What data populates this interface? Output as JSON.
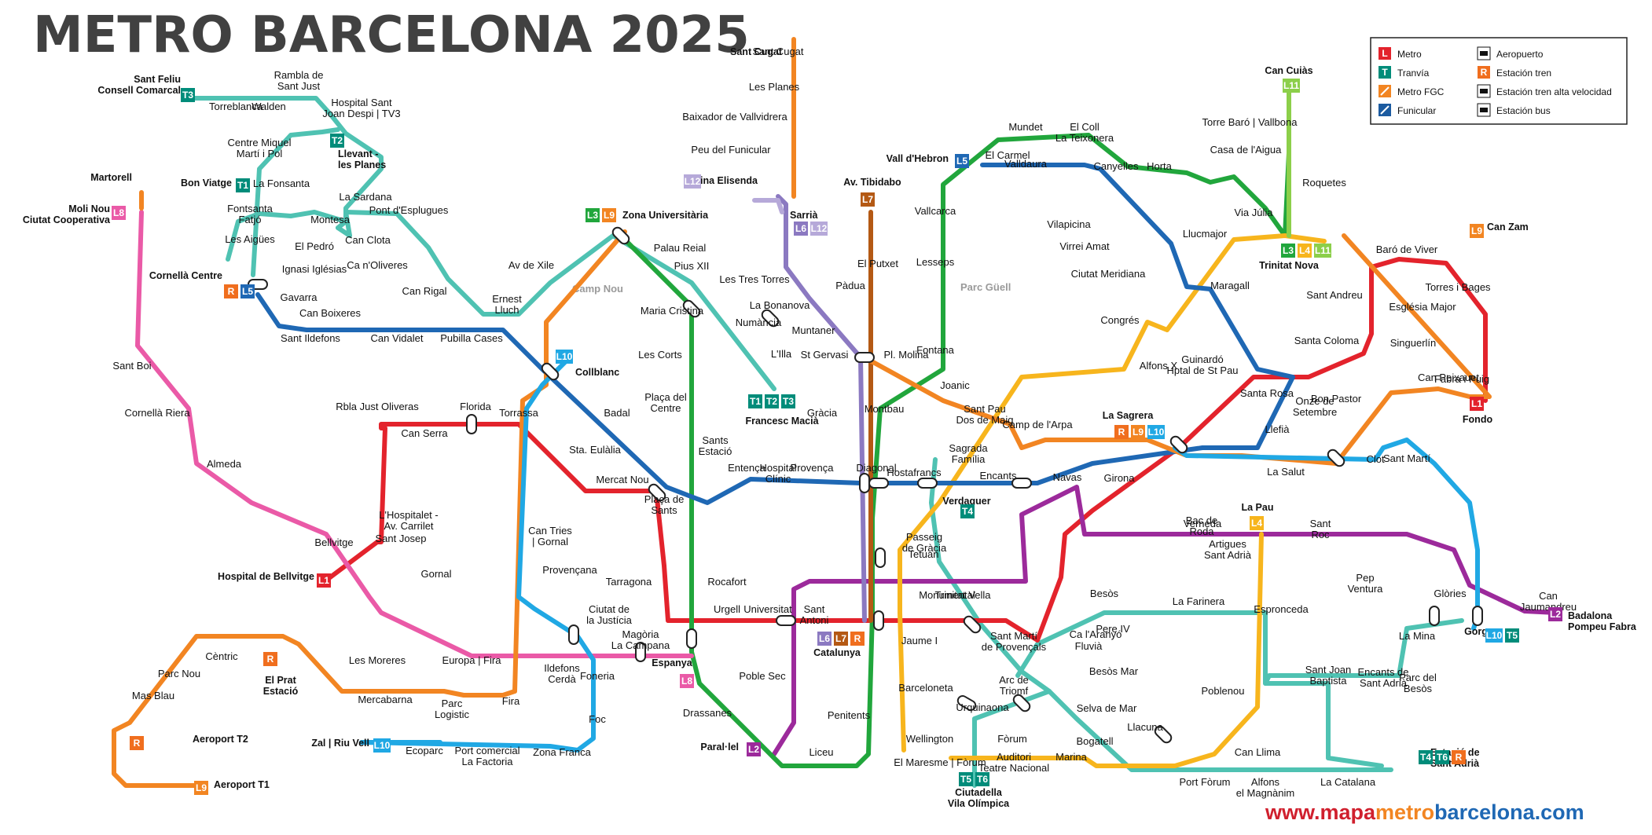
{
  "title": "METRO BARCELONA 2025",
  "website": {
    "prefix": "www.mapa",
    "metro": "metro",
    "suffix": "barcelona.com"
  },
  "parks": [
    "Camp Nou",
    "Parc Güell"
  ],
  "legend": [
    {
      "code": "L",
      "color": "#e3232c",
      "label": "Metro",
      "icon": "metro-badge"
    },
    {
      "code": "T",
      "color": "#008c7a",
      "label": "Tranvía",
      "icon": "tram-badge"
    },
    {
      "code": "",
      "color": "#f28522",
      "label": "Metro FGC",
      "icon": "fgc-logo"
    },
    {
      "code": "",
      "color": "#1c5ba0",
      "label": "Funicular",
      "icon": "funicular-badge"
    },
    {
      "code": "",
      "color": "#111111",
      "label": "Aeropuerto",
      "icon": "airplane-icon"
    },
    {
      "code": "R",
      "color": "#f06e1e",
      "label": "Estación tren",
      "icon": "train-icon"
    },
    {
      "code": "",
      "color": "#111111",
      "label": "Estación tren alta velocidad",
      "icon": "high-speed-train-icon"
    },
    {
      "code": "",
      "color": "#111111",
      "label": "Estación bus",
      "icon": "bus-icon"
    }
  ],
  "lines": [
    {
      "id": "L1",
      "color": "#e3232c"
    },
    {
      "id": "L2",
      "color": "#9c2a9b"
    },
    {
      "id": "L3",
      "color": "#21a63c"
    },
    {
      "id": "L4",
      "color": "#f7b51d"
    },
    {
      "id": "L5",
      "color": "#1f68b4"
    },
    {
      "id": "L6",
      "color": "#8b79c1"
    },
    {
      "id": "L7",
      "color": "#b45914"
    },
    {
      "id": "L8",
      "color": "#ea5aa7"
    },
    {
      "id": "L9",
      "color": "#f28522"
    },
    {
      "id": "L10",
      "color": "#20a8e4"
    },
    {
      "id": "L11",
      "color": "#8ccf4a"
    },
    {
      "id": "L12",
      "color": "#b6a9d9"
    },
    {
      "id": "TRAM",
      "color": "#4fc2b2"
    },
    {
      "id": "FGC",
      "color": "#f28522"
    }
  ],
  "terminals": [
    {
      "label": "Sant Feliu\nConsell Comarcal",
      "badges": [
        "T3"
      ]
    },
    {
      "label": "Llevant -\nles Planes",
      "badges": [
        "T2"
      ]
    },
    {
      "label": "Bon Viatge",
      "badges": [
        "T1"
      ]
    },
    {
      "label": "Moli Nou\nCiutat Cooperativa",
      "badges": [
        "L8"
      ]
    },
    {
      "label": "Cornellà Centre",
      "badges": [
        "R",
        "L5"
      ]
    },
    {
      "label": "Zona Universitària",
      "badges": [
        "L3",
        "L9"
      ]
    },
    {
      "label": "Reina Elisenda",
      "badges": [
        "L12"
      ]
    },
    {
      "label": "Sarrià",
      "badges": [
        "L6",
        "L12"
      ]
    },
    {
      "label": "Av. Tibidabo",
      "badges": [
        "L7"
      ]
    },
    {
      "label": "Vall d'Hebron",
      "badges": [
        "L5"
      ]
    },
    {
      "label": "Can Cuiàs",
      "badges": [
        "L11"
      ]
    },
    {
      "label": "Trinitat Nova",
      "badges": [
        "L3",
        "L4",
        "L11"
      ]
    },
    {
      "label": "Can Zam",
      "badges": [
        "L9"
      ]
    },
    {
      "label": "Fondo",
      "badges": [
        "L1"
      ]
    },
    {
      "label": "Francesc Macià",
      "badges": [
        "T1",
        "T2",
        "T3"
      ]
    },
    {
      "label": "Collblanc",
      "badges": [
        "L10"
      ]
    },
    {
      "label": "Hospital de Bellvitge",
      "badges": [
        "L1"
      ]
    },
    {
      "label": "Espanya",
      "badges": [
        "L8"
      ]
    },
    {
      "label": "Catalunya",
      "badges": [
        "L6",
        "L7",
        "R"
      ]
    },
    {
      "label": "Paral·lel",
      "badges": [
        "L2"
      ]
    },
    {
      "label": "La Sagrera",
      "badges": [
        "R",
        "L9",
        "L10"
      ]
    },
    {
      "label": "La Pau",
      "badges": [
        "L4"
      ]
    },
    {
      "label": "Badalona\nPompeu Fabra",
      "badges": [
        "L2"
      ]
    },
    {
      "label": "Gorg",
      "badges": [
        "L10",
        "T5"
      ]
    },
    {
      "label": "Estació de\nSant Adrià",
      "badges": [
        "T4",
        "T6",
        "R"
      ]
    },
    {
      "label": "Ciutadella\nVila Olímpica",
      "badges": [
        "T5",
        "T6"
      ]
    },
    {
      "label": "Zal | Riu Vell",
      "badges": [
        "L10"
      ]
    },
    {
      "label": "Aeroport T1",
      "badges": [
        "L9"
      ]
    },
    {
      "label": "Aeroport T2",
      "badges": [
        "R"
      ]
    },
    {
      "label": "El Prat\nEstació",
      "badges": [
        "R"
      ]
    },
    {
      "label": "Verdaguer",
      "badges": [
        "T4"
      ]
    },
    {
      "label": "Martorell",
      "badges": []
    },
    {
      "label": "Sant Cugat",
      "badges": []
    }
  ],
  "stations": [
    "Rambla de\nSant Just",
    "Torreblanca",
    "Walden",
    "Hospital Sant\nJoan Despi | TV3",
    "Centre Miquel\nMartí i Pol",
    "La Fonsanta",
    "Fontsanta\nFatjó",
    "Les Aigües",
    "Montesa",
    "La Sardana",
    "Pont d'Esplugues",
    "El Pedró",
    "Can Clota",
    "Ignasi Iglésias",
    "Ca n'Oliveres",
    "Can Rigal",
    "Ernest\nLluch",
    "Av de Xile",
    "Gavarra",
    "Can Boixeres",
    "Sant Ildefons",
    "Can Vidalet",
    "Pubilla Cases",
    "Sant Boi",
    "Cornellà Riera",
    "Almeda",
    "Bellvitge",
    "Rbla Just Oliveras",
    "Can Serra",
    "Florida",
    "Torrassa",
    "L'Hospitalet -\nAv. Carrilet",
    "Sant Josep",
    "Gornal",
    "Europa | Fira",
    "Les Moreres",
    "Mercabarna",
    "Parc\nLogistic",
    "Fira",
    "Can Tries\n| Gornal",
    "Provençana",
    "Ciutat de\nla Justícia",
    "Magòria\nLa Campana",
    "Ildefons\nCerdà",
    "Foneria",
    "Foc",
    "Ecoparc",
    "Port comercial\nLa Factoria",
    "Zona Franca",
    "Cèntric",
    "Parc Nou",
    "Mas Blau",
    "Sant Cugat",
    "Les Planes",
    "Baixador de Vallvidrera",
    "Peu del Funicular",
    "Les Tres Torres",
    "La Bonanova",
    "Muntaner",
    "St Gervasi",
    "Pl. Molina",
    "Pàdua",
    "El Putxet",
    "Gràcia",
    "Palau Reial",
    "Pius XII",
    "Maria Cristina",
    "Numància",
    "L'Illa",
    "Les Corts",
    "Plaça del\nCentre",
    "Badal",
    "Sta. Eulàlia",
    "Mercat Nou",
    "Plaça de\nSants",
    "Sants\nEstació",
    "Entença",
    "Hospital\nClínic",
    "Provença",
    "Diagonal",
    "Hostafrancs",
    "Tarragona",
    "Rocafort",
    "Urgell",
    "Universitat",
    "Sant\nAntoni",
    "Poble Sec",
    "Drassanes",
    "Liceu",
    "Penitents",
    "Vallcarca",
    "Lesseps",
    "Fontana",
    "Montbau",
    "Mundet",
    "El Coll\nLa Teixonera",
    "El Carmel",
    "Valldaura",
    "Canyelles",
    "Horta",
    "Vilapicina",
    "Virrei Amat",
    "Ciutat Meridiana",
    "Torre Baró | Vallbona",
    "Casa de l'Aigua",
    "Roquetes",
    "Via Júlia",
    "Llucmajor",
    "Maragall",
    "Congrés",
    "Guinardó\nHptal de St Pau",
    "Alfons X",
    "Joanic",
    "Sant Pau\nDos de Maig",
    "Camp de l'Arpa",
    "Sagrada\nFamília",
    "Encants",
    "Navas",
    "Girona",
    "Passeig\nde Gràcia",
    "Tetuan",
    "Monumental",
    "Trinitat Vella",
    "Baró de Viver",
    "Torres i Bages",
    "Sant Andreu",
    "Santa Coloma",
    "Singuerlín",
    "Església Major",
    "Fabra i Puig",
    "Santa Rosa",
    "Can Peixauet",
    "Bon Pastor",
    "Onze de\nSetembre",
    "Llefià",
    "La Salut",
    "Clot",
    "Sant Martí",
    "Bac de\nRoda",
    "Verneda",
    "Artigues\nSant Adrià",
    "Sant\nRoc",
    "Pep\nVentura",
    "Glòries",
    "Can\nJaumandreu",
    "Sant Martí\nde Provençals",
    "Besòs",
    "La Farinera",
    "Espronceda",
    "Ca l'Aranyó",
    "Pere IV",
    "Fluvià",
    "Besòs Mar",
    "Selva de Mar",
    "Poblenou",
    "Llacuna",
    "Bogatell",
    "Marina",
    "Auditori\nTeatre Nacional",
    "Urquinaona",
    "Arc de\nTriomf",
    "Jaume I",
    "Barceloneta",
    "Wellington",
    "El Maresme | Fòrum",
    "Fòrum",
    "Can Llima",
    "Port Fòrum",
    "Alfons\nel Magnànim",
    "La Catalana",
    "Sant Joan\nBaptista",
    "Encants de\nSant Adrià",
    "Parc del\nBesòs",
    "La Mina"
  ]
}
